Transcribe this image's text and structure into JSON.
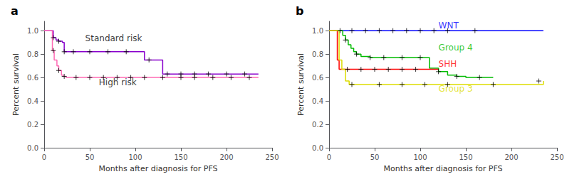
{
  "chart_data": [
    {
      "type": "line",
      "title": "a",
      "xlabel": "Months after diagnosis for PFS",
      "ylabel": "Percent survival",
      "xlim": [
        0,
        250
      ],
      "xticks": [
        0,
        50,
        100,
        150,
        200,
        250
      ],
      "ylim": [
        0.0,
        1.08
      ],
      "yticks": [
        {
          "value": 0.0,
          "label": "0.0"
        },
        0.2,
        0.4,
        0.6,
        0.8,
        {
          "value": 1.0,
          "label": "1.0"
        }
      ],
      "grid": false,
      "series": [
        {
          "type": "line",
          "line_style": "step",
          "color": "#8800CC",
          "x": [
            0,
            8,
            10,
            13,
            16,
            18,
            20,
            22,
            25,
            28,
            32,
            40,
            50,
            60,
            70,
            80,
            90,
            100,
            110,
            115,
            120,
            125,
            130,
            140,
            150,
            160,
            170,
            180,
            190,
            200,
            210,
            220,
            230,
            235
          ],
          "values": [
            1.0,
            1.0,
            0.94,
            0.92,
            0.91,
            0.91,
            0.9,
            0.82,
            0.82,
            0.82,
            0.82,
            0.82,
            0.82,
            0.82,
            0.82,
            0.82,
            0.82,
            0.82,
            0.75,
            0.75,
            0.75,
            0.75,
            0.63,
            0.63,
            0.63,
            0.63,
            0.63,
            0.63,
            0.63,
            0.63,
            0.63,
            0.63,
            0.63,
            0.63
          ]
        },
        {
          "type": "line",
          "line_style": "step",
          "color": "#FF69B4",
          "x": [
            0,
            6,
            9,
            11,
            14,
            16,
            19,
            21,
            24,
            28,
            32,
            40,
            50,
            60,
            70,
            80,
            90,
            100,
            110,
            120,
            130,
            140,
            150,
            160,
            170,
            180,
            190,
            200,
            210,
            220,
            230,
            235
          ],
          "values": [
            1.0,
            1.0,
            0.83,
            0.75,
            0.7,
            0.66,
            0.62,
            0.61,
            0.6,
            0.6,
            0.6,
            0.6,
            0.6,
            0.6,
            0.6,
            0.6,
            0.6,
            0.6,
            0.6,
            0.6,
            0.6,
            0.6,
            0.6,
            0.6,
            0.6,
            0.6,
            0.6,
            0.6,
            0.6,
            0.6,
            0.6,
            0.6
          ]
        },
        {
          "type": "scatter",
          "marker": "plus",
          "color": "black",
          "x": [
            10,
            16,
            22,
            32,
            50,
            70,
            90,
            115,
            135,
            150,
            165,
            180,
            200,
            220
          ],
          "values": [
            0.94,
            0.91,
            0.82,
            0.82,
            0.82,
            0.82,
            0.82,
            0.75,
            0.63,
            0.63,
            0.63,
            0.63,
            0.63,
            0.63
          ]
        },
        {
          "type": "scatter",
          "marker": "plus",
          "color": "black",
          "x": [
            10,
            16,
            22,
            35,
            50,
            65,
            80,
            95,
            110,
            130,
            150,
            165,
            185,
            205,
            225
          ],
          "values": [
            0.83,
            0.66,
            0.61,
            0.6,
            0.6,
            0.6,
            0.6,
            0.6,
            0.6,
            0.6,
            0.6,
            0.6,
            0.6,
            0.6,
            0.6
          ]
        }
      ],
      "annotations": [
        {
          "text": "Standard risk",
          "x": 45,
          "y": 0.9,
          "color": "black"
        },
        {
          "text": "High risk",
          "x": 60,
          "y": 0.52,
          "color": "black"
        }
      ]
    },
    {
      "type": "line",
      "title": "b",
      "xlabel": "Months after diagnosis for PFS",
      "ylabel": "Percent survival",
      "xlim": [
        0,
        250
      ],
      "xticks": [
        0,
        50,
        100,
        150,
        200,
        250
      ],
      "ylim": [
        0.0,
        1.08
      ],
      "yticks": [
        {
          "value": 0.0,
          "label": "0.0"
        },
        0.2,
        0.4,
        0.6,
        0.8,
        {
          "value": 1.0,
          "label": "1.0"
        }
      ],
      "grid": false,
      "series": [
        {
          "type": "line",
          "line_style": "step",
          "color": "#0000FF",
          "x": [
            0,
            5,
            10,
            20,
            30,
            40,
            50,
            60,
            70,
            80,
            90,
            100,
            110,
            120,
            130,
            140,
            160,
            235
          ],
          "values": [
            1.0,
            1.0,
            1.0,
            1.0,
            1.0,
            1.0,
            1.0,
            1.0,
            1.0,
            1.0,
            1.0,
            1.0,
            1.0,
            1.0,
            1.0,
            1.0,
            1.0,
            1.0
          ]
        },
        {
          "type": "line",
          "line_style": "step",
          "color": "#00BB00",
          "x": [
            0,
            12,
            15,
            18,
            21,
            24,
            27,
            30,
            35,
            40,
            45,
            50,
            60,
            70,
            80,
            90,
            100,
            110,
            120,
            130,
            140,
            150,
            160,
            170,
            180
          ],
          "values": [
            1.0,
            1.0,
            0.96,
            0.92,
            0.88,
            0.85,
            0.82,
            0.8,
            0.78,
            0.78,
            0.77,
            0.77,
            0.77,
            0.77,
            0.77,
            0.77,
            0.77,
            0.68,
            0.65,
            0.62,
            0.61,
            0.6,
            0.6,
            0.6,
            0.6
          ]
        },
        {
          "type": "line",
          "line_style": "step",
          "color": "#FF0000",
          "x": [
            0,
            7,
            9,
            11,
            20,
            30,
            40,
            50,
            60,
            70,
            80,
            90,
            100,
            105,
            108,
            112,
            115,
            120
          ],
          "values": [
            1.0,
            1.0,
            0.75,
            0.67,
            0.67,
            0.67,
            0.67,
            0.67,
            0.67,
            0.67,
            0.67,
            0.67,
            0.67,
            0.67,
            0.67,
            0.67,
            0.67,
            0.67
          ]
        },
        {
          "type": "line",
          "line_style": "step",
          "color": "#DDDD00",
          "x": [
            0,
            8,
            11,
            14,
            18,
            22,
            50,
            60,
            70,
            80,
            90,
            100,
            110,
            120,
            130,
            140,
            180,
            235
          ],
          "values": [
            1.0,
            1.0,
            0.75,
            0.67,
            0.57,
            0.54,
            0.54,
            0.54,
            0.54,
            0.54,
            0.54,
            0.54,
            0.54,
            0.54,
            0.54,
            0.54,
            0.54,
            0.57
          ]
        },
        {
          "type": "scatter",
          "marker": "plus",
          "color": "black",
          "x": [
            12,
            25,
            40,
            55,
            70,
            85,
            100,
            115,
            130,
            160
          ],
          "values": [
            1.0,
            1.0,
            1.0,
            1.0,
            1.0,
            1.0,
            1.0,
            1.0,
            1.0,
            1.0
          ]
        },
        {
          "type": "scatter",
          "marker": "plus",
          "color": "black",
          "x": [
            18,
            30,
            45,
            60,
            80,
            100,
            120,
            140,
            165
          ],
          "values": [
            0.92,
            0.8,
            0.77,
            0.77,
            0.77,
            0.77,
            0.65,
            0.61,
            0.6
          ]
        },
        {
          "type": "scatter",
          "marker": "plus",
          "color": "black",
          "x": [
            20,
            35,
            50,
            65,
            80,
            95
          ],
          "values": [
            0.67,
            0.67,
            0.67,
            0.67,
            0.67,
            0.67
          ]
        },
        {
          "type": "scatter",
          "marker": "plus",
          "color": "black",
          "x": [
            25,
            55,
            80,
            105,
            130,
            180,
            230
          ],
          "values": [
            0.54,
            0.54,
            0.54,
            0.54,
            0.54,
            0.54,
            0.57
          ]
        }
      ],
      "annotations": [
        {
          "text": "WNT",
          "x": 120,
          "y": 1.01,
          "color": "#0000FF"
        },
        {
          "text": "Group 4",
          "x": 120,
          "y": 0.82,
          "color": "#00BB00"
        },
        {
          "text": "SHH",
          "x": 120,
          "y": 0.68,
          "color": "#FF0000"
        },
        {
          "text": "Group 3",
          "x": 120,
          "y": 0.47,
          "color": "#DDDD00"
        }
      ]
    }
  ]
}
